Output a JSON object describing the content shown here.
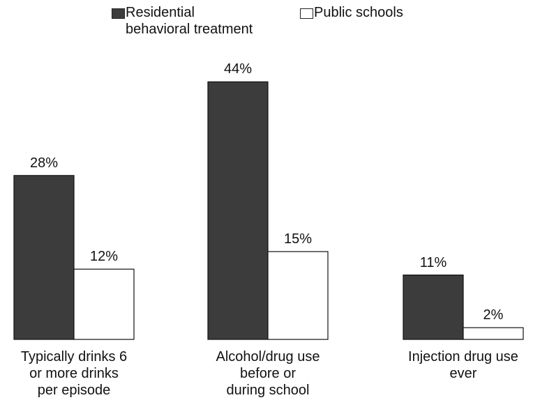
{
  "chart_data": {
    "type": "bar",
    "categories": [
      "Typically drinks 6\nor more drinks\nper episode",
      "Alcohol/drug use\nbefore or\nduring school",
      "Injection drug use\never"
    ],
    "series": [
      {
        "name": "Residential\nbehavioral treatment",
        "color": "#3c3c3c",
        "values": [
          28,
          44,
          11
        ],
        "value_labels": [
          "28%",
          "44%",
          "11%"
        ]
      },
      {
        "name": "Public schools",
        "color": "#ffffff",
        "values": [
          12,
          15,
          2
        ],
        "value_labels": [
          "12%",
          "15%",
          "2%"
        ]
      }
    ]
  }
}
